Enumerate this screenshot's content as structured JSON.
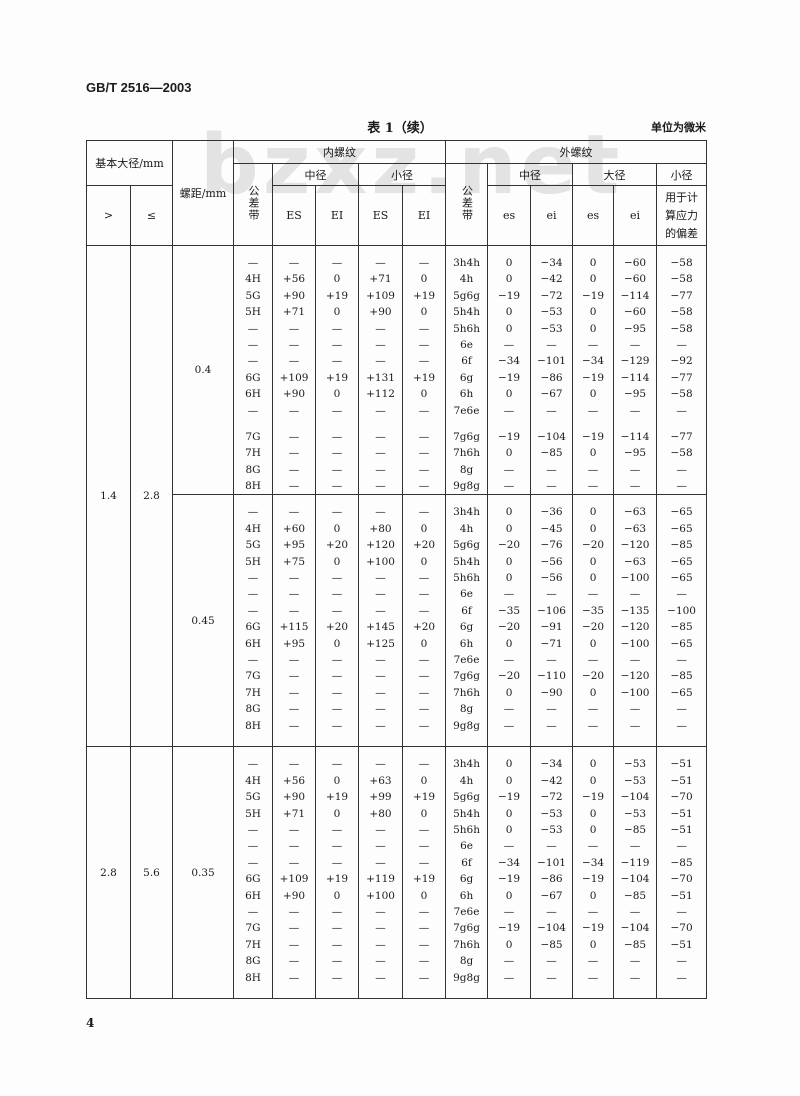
{
  "standard_id": "GB/T 2516—2003",
  "table_title": "表 1（续）",
  "unit_note": "单位为微米",
  "watermark": "bzxz.net",
  "page_number": "4",
  "headers": {
    "basic_major_diameter": "基本大径/mm",
    "gt": ">",
    "le": "≤",
    "pitch": "螺距/mm",
    "internal_thread": "内螺纹",
    "external_thread": "外螺纹",
    "tolerance_band": "公差带",
    "pitch_diameter": "中径",
    "minor_diameter": "小径",
    "major_diameter": "大径",
    "ES": "ES",
    "EI": "EI",
    "es": "es",
    "ei": "ei",
    "stress_deviation": "用于计算应力的偏差"
  },
  "groups": [
    {
      "gt": "1.4",
      "le": "2.8"
    },
    {
      "gt": "2.8",
      "le": "5.6"
    }
  ],
  "blocks": [
    {
      "pitch": "0.4",
      "rows": [
        [
          "—",
          "—",
          "—",
          "—",
          "—",
          "3h4h",
          "0",
          "−34",
          "0",
          "−60",
          "−58"
        ],
        [
          "4H",
          "+56",
          "0",
          "+71",
          "0",
          "4h",
          "0",
          "−42",
          "0",
          "−60",
          "−58"
        ],
        [
          "5G",
          "+90",
          "+19",
          "+109",
          "+19",
          "5g6g",
          "−19",
          "−72",
          "−19",
          "−114",
          "−77"
        ],
        [
          "5H",
          "+71",
          "0",
          "+90",
          "0",
          "5h4h",
          "0",
          "−53",
          "0",
          "−60",
          "−58"
        ],
        [
          "—",
          "—",
          "—",
          "—",
          "—",
          "5h6h",
          "0",
          "−53",
          "0",
          "−95",
          "−58"
        ],
        [
          "—",
          "—",
          "—",
          "—",
          "—",
          "6e",
          "—",
          "—",
          "—",
          "—",
          "—"
        ],
        [
          "—",
          "—",
          "—",
          "—",
          "—",
          "6f",
          "−34",
          "−101",
          "−34",
          "−129",
          "−92"
        ],
        [
          "6G",
          "+109",
          "+19",
          "+131",
          "+19",
          "6g",
          "−19",
          "−86",
          "−19",
          "−114",
          "−77"
        ],
        [
          "6H",
          "+90",
          "0",
          "+112",
          "0",
          "6h",
          "0",
          "−67",
          "0",
          "−95",
          "−58"
        ],
        [
          "—",
          "—",
          "—",
          "—",
          "—",
          "7e6e",
          "—",
          "—",
          "—",
          "—",
          "—"
        ],
        [
          "7G",
          "—",
          "—",
          "—",
          "—",
          "7g6g",
          "−19",
          "−104",
          "−19",
          "−114",
          "−77"
        ],
        [
          "7H",
          "—",
          "—",
          "—",
          "—",
          "7h6h",
          "0",
          "−85",
          "0",
          "−95",
          "−58"
        ],
        [
          "8G",
          "—",
          "—",
          "—",
          "—",
          "8g",
          "—",
          "—",
          "—",
          "—",
          "—"
        ],
        [
          "8H",
          "—",
          "—",
          "—",
          "—",
          "9g8g",
          "—",
          "—",
          "—",
          "—",
          "—"
        ]
      ]
    },
    {
      "pitch": "0.45",
      "rows": [
        [
          "—",
          "—",
          "—",
          "—",
          "—",
          "3h4h",
          "0",
          "−36",
          "0",
          "−63",
          "−65"
        ],
        [
          "4H",
          "+60",
          "0",
          "+80",
          "0",
          "4h",
          "0",
          "−45",
          "0",
          "−63",
          "−65"
        ],
        [
          "5G",
          "+95",
          "+20",
          "+120",
          "+20",
          "5g6g",
          "−20",
          "−76",
          "−20",
          "−120",
          "−85"
        ],
        [
          "5H",
          "+75",
          "0",
          "+100",
          "0",
          "5h4h",
          "0",
          "−56",
          "0",
          "−63",
          "−65"
        ],
        [
          "—",
          "—",
          "—",
          "—",
          "—",
          "5h6h",
          "0",
          "−56",
          "0",
          "−100",
          "−65"
        ],
        [
          "—",
          "—",
          "—",
          "—",
          "—",
          "6e",
          "—",
          "—",
          "—",
          "—",
          "—"
        ],
        [
          "—",
          "—",
          "—",
          "—",
          "—",
          "6f",
          "−35",
          "−106",
          "−35",
          "−135",
          "−100"
        ],
        [
          "6G",
          "+115",
          "+20",
          "+145",
          "+20",
          "6g",
          "−20",
          "−91",
          "−20",
          "−120",
          "−85"
        ],
        [
          "6H",
          "+95",
          "0",
          "+125",
          "0",
          "6h",
          "0",
          "−71",
          "0",
          "−100",
          "−65"
        ],
        [
          "—",
          "—",
          "—",
          "—",
          "—",
          "7e6e",
          "—",
          "—",
          "—",
          "—",
          "—"
        ],
        [
          "7G",
          "—",
          "—",
          "—",
          "—",
          "7g6g",
          "−20",
          "−110",
          "−20",
          "−120",
          "−85"
        ],
        [
          "7H",
          "—",
          "—",
          "—",
          "—",
          "7h6h",
          "0",
          "−90",
          "0",
          "−100",
          "−65"
        ],
        [
          "8G",
          "—",
          "—",
          "—",
          "—",
          "8g",
          "—",
          "—",
          "—",
          "—",
          "—"
        ],
        [
          "8H",
          "—",
          "—",
          "—",
          "—",
          "9g8g",
          "—",
          "—",
          "—",
          "—",
          "—"
        ]
      ]
    },
    {
      "pitch": "0.35",
      "rows": [
        [
          "—",
          "—",
          "—",
          "—",
          "—",
          "3h4h",
          "0",
          "−34",
          "0",
          "−53",
          "−51"
        ],
        [
          "4H",
          "+56",
          "0",
          "+63",
          "0",
          "4h",
          "0",
          "−42",
          "0",
          "−53",
          "−51"
        ],
        [
          "5G",
          "+90",
          "+19",
          "+99",
          "+19",
          "5g6g",
          "−19",
          "−72",
          "−19",
          "−104",
          "−70"
        ],
        [
          "5H",
          "+71",
          "0",
          "+80",
          "0",
          "5h4h",
          "0",
          "−53",
          "0",
          "−53",
          "−51"
        ],
        [
          "—",
          "—",
          "—",
          "—",
          "—",
          "5h6h",
          "0",
          "−53",
          "0",
          "−85",
          "−51"
        ],
        [
          "—",
          "—",
          "—",
          "—",
          "—",
          "6e",
          "—",
          "—",
          "—",
          "—",
          "—"
        ],
        [
          "—",
          "—",
          "—",
          "—",
          "—",
          "6f",
          "−34",
          "−101",
          "−34",
          "−119",
          "−85"
        ],
        [
          "6G",
          "+109",
          "+19",
          "+119",
          "+19",
          "6g",
          "−19",
          "−86",
          "−19",
          "−104",
          "−70"
        ],
        [
          "6H",
          "+90",
          "0",
          "+100",
          "0",
          "6h",
          "0",
          "−67",
          "0",
          "−85",
          "−51"
        ],
        [
          "—",
          "—",
          "—",
          "—",
          "—",
          "7e6e",
          "—",
          "—",
          "—",
          "—",
          "—"
        ],
        [
          "7G",
          "—",
          "—",
          "—",
          "—",
          "7g6g",
          "−19",
          "−104",
          "−19",
          "−104",
          "−70"
        ],
        [
          "7H",
          "—",
          "—",
          "—",
          "—",
          "7h6h",
          "0",
          "−85",
          "0",
          "−85",
          "−51"
        ],
        [
          "8G",
          "—",
          "—",
          "—",
          "—",
          "8g",
          "—",
          "—",
          "—",
          "—",
          "—"
        ],
        [
          "8H",
          "—",
          "—",
          "—",
          "—",
          "9g8g",
          "—",
          "—",
          "—",
          "—",
          "—"
        ]
      ]
    }
  ]
}
